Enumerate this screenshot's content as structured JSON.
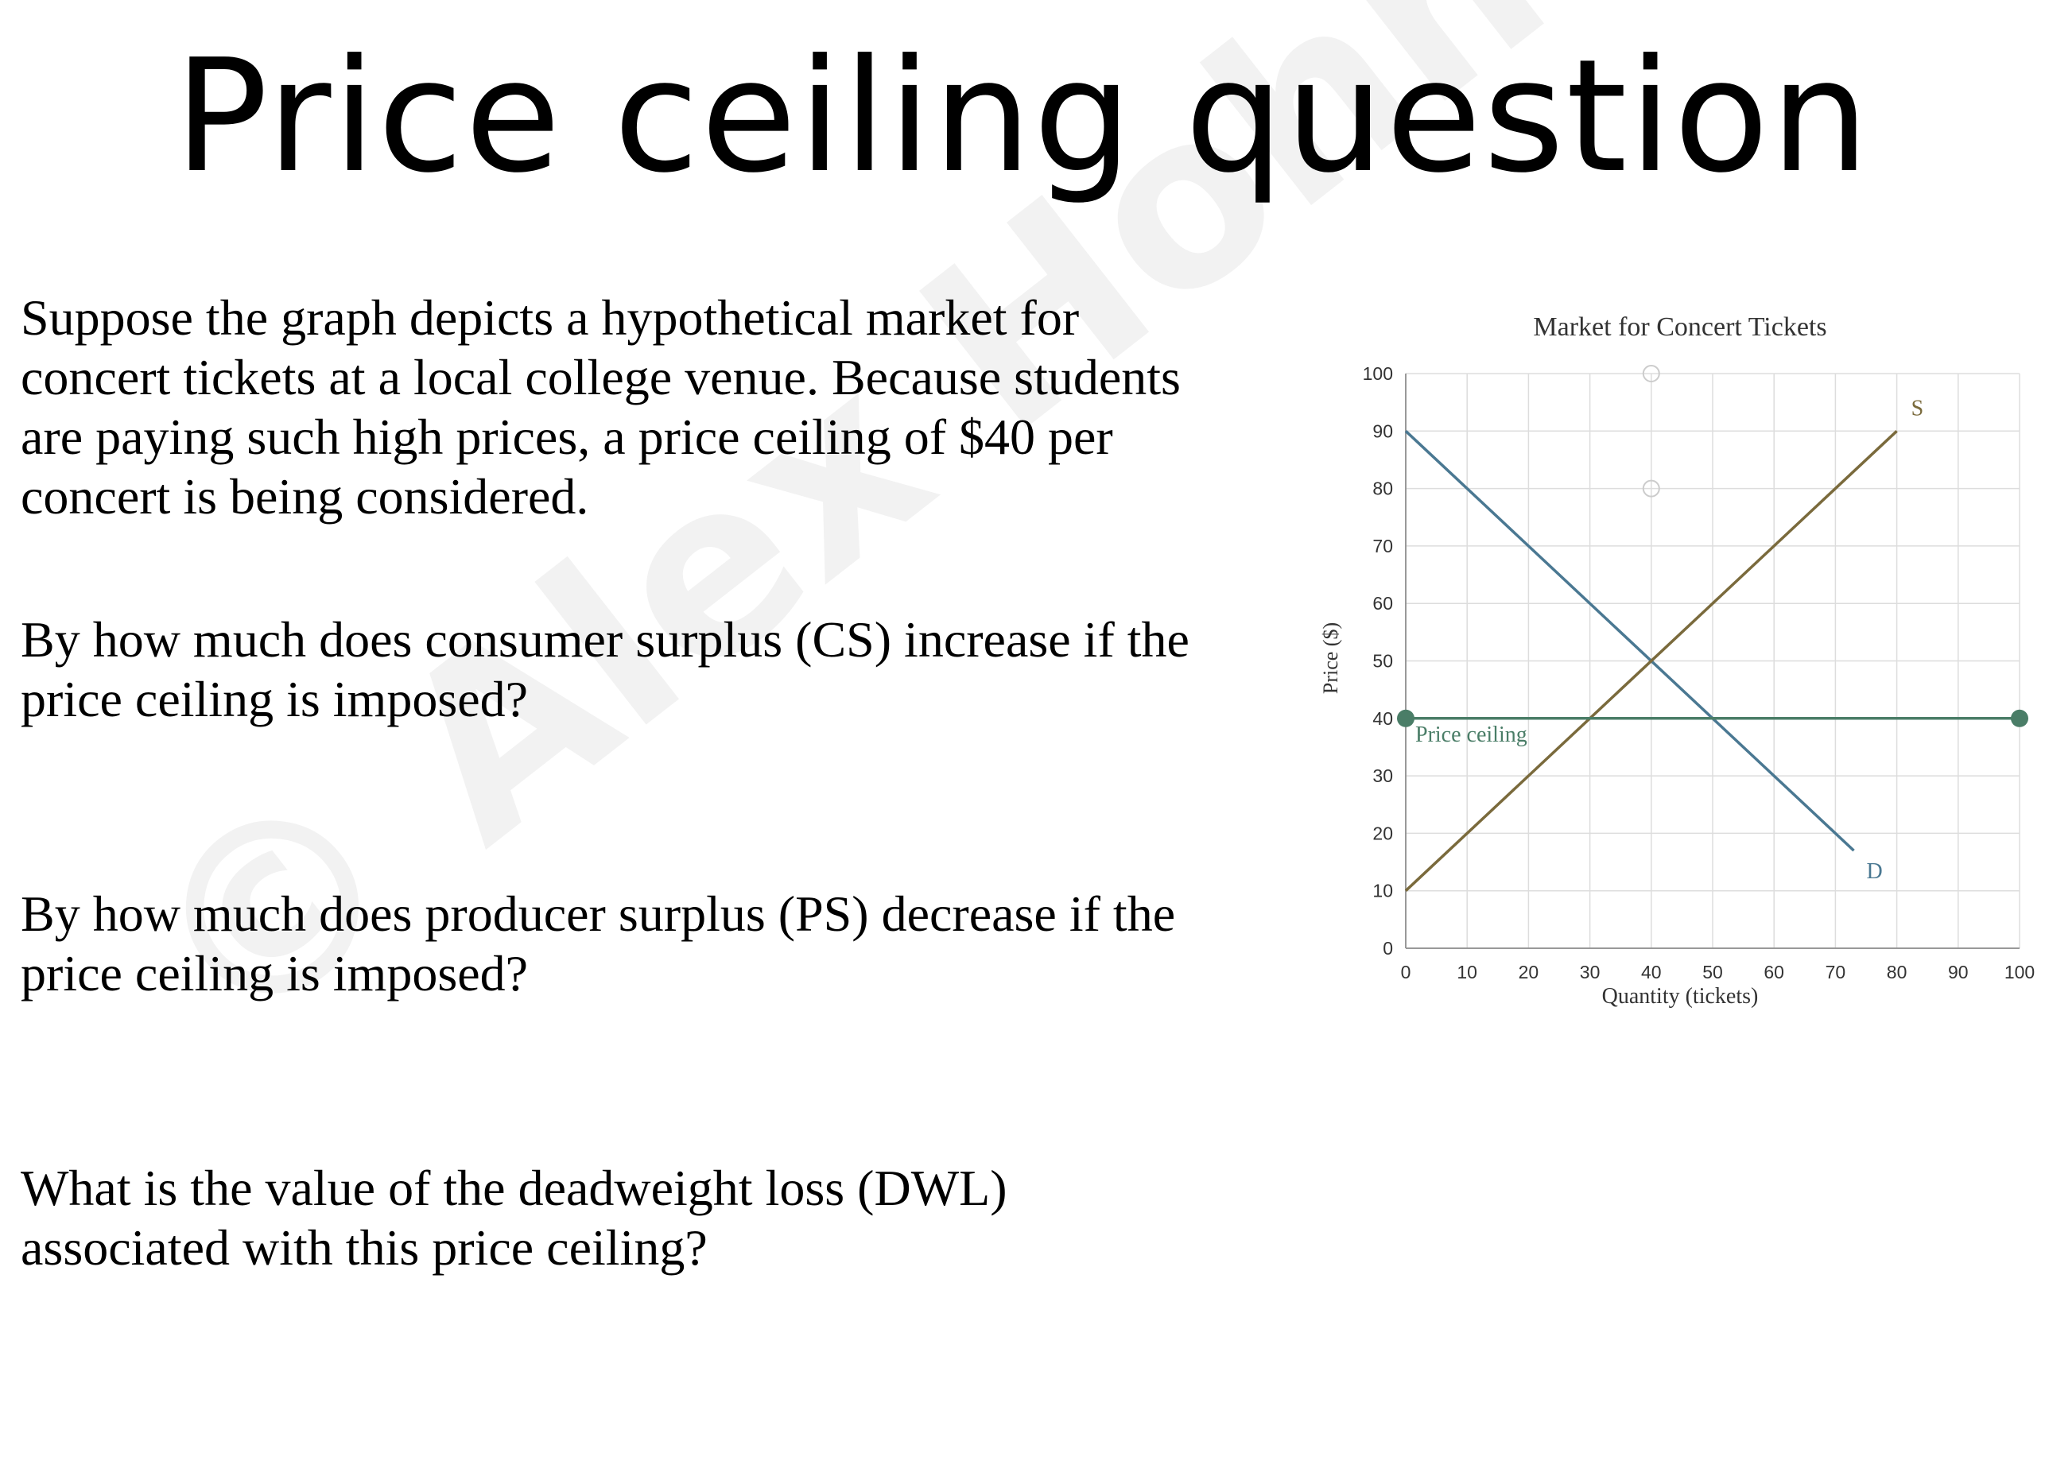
{
  "page": {
    "title": "Price ceiling question",
    "intro": "Suppose the graph depicts a hypothetical market for concert tickets at a local college venue. Because students are paying such high prices, a price ceiling of $40 per concert is being considered.",
    "question_cs": "By how much does consumer surplus (CS) increase if the price ceiling is imposed?",
    "question_ps": "By how much does producer surplus (PS) decrease if the price ceiling is imposed?",
    "question_dwl": "What is the value of the deadweight loss (DWL) associated with this price ceiling?",
    "watermark": "© Alex Hohmann"
  },
  "chart_data": {
    "type": "line",
    "title": "Market for Concert Tickets",
    "xlabel": "Quantity (tickets)",
    "ylabel": "Price ($)",
    "xlim": [
      0,
      100
    ],
    "ylim": [
      0,
      100
    ],
    "xticks": [
      0,
      10,
      20,
      30,
      40,
      50,
      60,
      70,
      80,
      90,
      100
    ],
    "yticks": [
      0,
      10,
      20,
      30,
      40,
      50,
      60,
      70,
      80,
      90,
      100
    ],
    "grid": true,
    "series": [
      {
        "name": "D",
        "color": "#4a7892",
        "points": [
          [
            0,
            90
          ],
          [
            73,
            17
          ]
        ]
      },
      {
        "name": "S",
        "color": "#7a6a3c",
        "points": [
          [
            0,
            10
          ],
          [
            80,
            90
          ]
        ]
      },
      {
        "name": "Price ceiling",
        "color": "#4a7d67",
        "points": [
          [
            0,
            40
          ],
          [
            100,
            40
          ]
        ],
        "endpoint_markers": true
      }
    ],
    "hollow_markers": [
      [
        40,
        100
      ],
      [
        40,
        80
      ]
    ]
  }
}
